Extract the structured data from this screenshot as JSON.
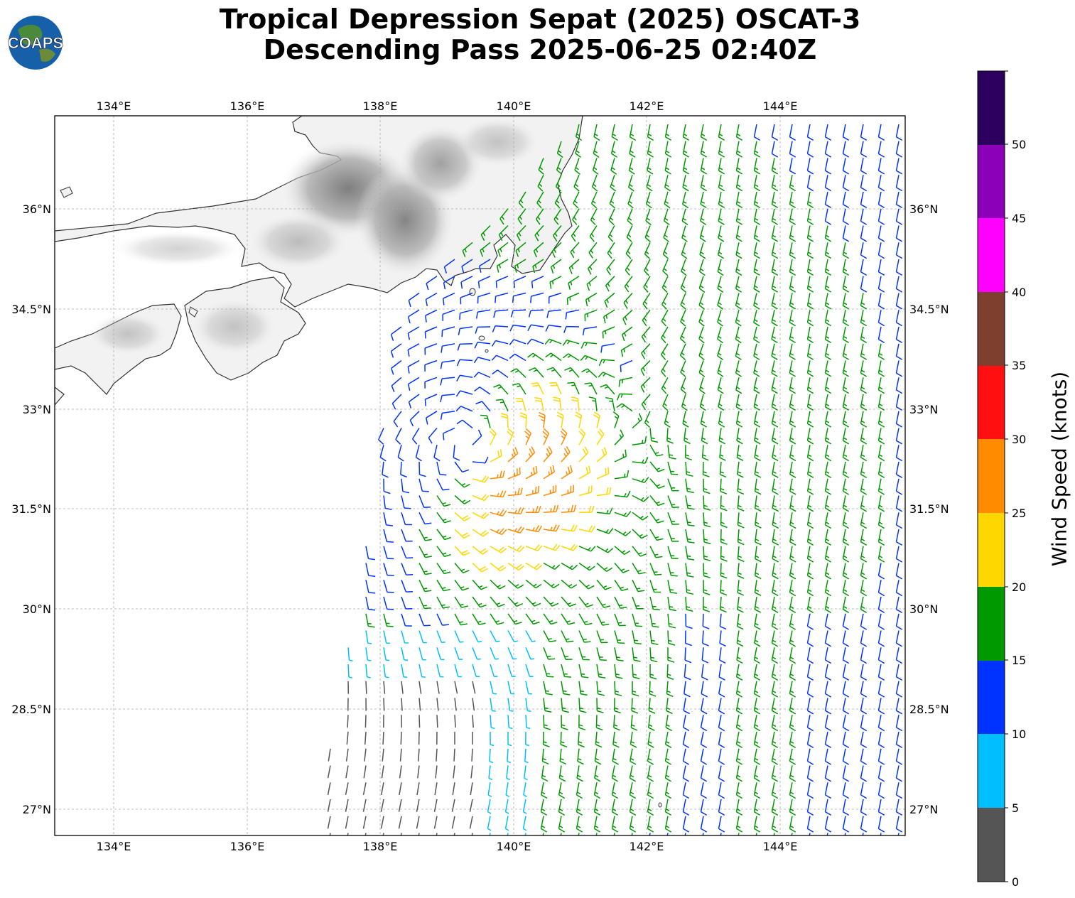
{
  "title_line1": "Tropical Depression Sepat (2025) OSCAT-3",
  "title_line2": "Descending Pass 2025-06-25 02:40Z",
  "logo_text": "COAPS",
  "lon_labels": [
    "134°E",
    "136°E",
    "138°E",
    "140°E",
    "142°E",
    "144°E"
  ],
  "lat_labels": [
    "36°N",
    "34.5°N",
    "33°N",
    "31.5°N",
    "30°N",
    "28.5°N",
    "27°N"
  ],
  "colorbar": {
    "label": "Wind Speed (knots)",
    "ticks": [
      "0",
      "5",
      "10",
      "15",
      "20",
      "25",
      "30",
      "35",
      "40",
      "45",
      "50"
    ],
    "colors": [
      "#555555",
      "#00bfff",
      "#0033ff",
      "#009900",
      "#ffd700",
      "#ff8c00",
      "#ff0f0f",
      "#7f3f2f",
      "#ff00ff",
      "#8b00b8",
      "#2d005f"
    ]
  },
  "storm": {
    "center_lon": 139.3,
    "center_lat": 32.5
  }
}
